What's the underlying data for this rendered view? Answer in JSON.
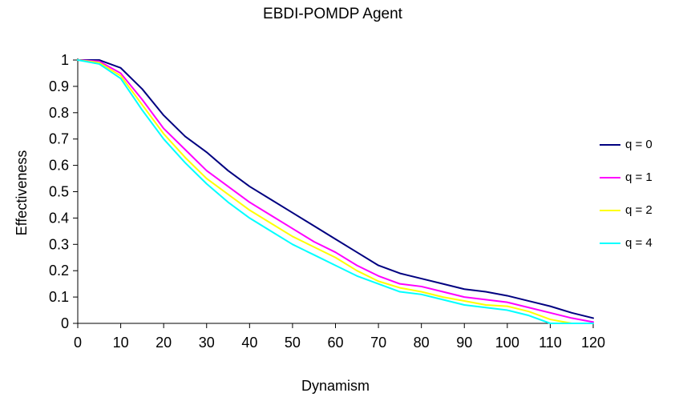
{
  "chart_data": {
    "type": "line",
    "title": "EBDI-POMDP Agent",
    "xlabel": "Dynamism",
    "ylabel": "Effectiveness",
    "xlim": [
      0,
      120
    ],
    "ylim": [
      0,
      1
    ],
    "grid": false,
    "legend_position": "right",
    "x_ticks": [
      0,
      10,
      20,
      30,
      40,
      50,
      60,
      70,
      80,
      90,
      100,
      110,
      120
    ],
    "y_ticks": [
      "0",
      "0.1",
      "0.2",
      "0.3",
      "0.4",
      "0.5",
      "0.6",
      "0.7",
      "0.8",
      "0.9",
      "1"
    ],
    "x": [
      0,
      5,
      10,
      15,
      20,
      25,
      30,
      35,
      40,
      45,
      50,
      55,
      60,
      65,
      70,
      75,
      80,
      85,
      90,
      95,
      100,
      105,
      110,
      115,
      120
    ],
    "series": [
      {
        "name": "q = 0",
        "color": "#000080",
        "values": [
          1.0,
          1.0,
          0.97,
          0.89,
          0.79,
          0.71,
          0.65,
          0.58,
          0.52,
          0.47,
          0.42,
          0.37,
          0.32,
          0.27,
          0.22,
          0.19,
          0.17,
          0.15,
          0.13,
          0.12,
          0.105,
          0.085,
          0.065,
          0.04,
          0.02
        ]
      },
      {
        "name": "q = 1",
        "color": "#FF00FF",
        "values": [
          1.0,
          0.995,
          0.95,
          0.85,
          0.74,
          0.66,
          0.58,
          0.52,
          0.46,
          0.41,
          0.36,
          0.31,
          0.27,
          0.22,
          0.18,
          0.15,
          0.14,
          0.12,
          0.1,
          0.09,
          0.08,
          0.06,
          0.04,
          0.02,
          0.005
        ]
      },
      {
        "name": "q = 2",
        "color": "#FFFF00",
        "values": [
          1.0,
          0.99,
          0.94,
          0.83,
          0.72,
          0.63,
          0.55,
          0.49,
          0.43,
          0.38,
          0.33,
          0.29,
          0.25,
          0.2,
          0.16,
          0.135,
          0.12,
          0.1,
          0.085,
          0.07,
          0.065,
          0.045,
          0.015,
          0.0,
          0.0
        ]
      },
      {
        "name": "q = 4",
        "color": "#00FFFF",
        "values": [
          1.0,
          0.985,
          0.93,
          0.81,
          0.7,
          0.61,
          0.53,
          0.46,
          0.4,
          0.35,
          0.3,
          0.26,
          0.22,
          0.18,
          0.15,
          0.12,
          0.11,
          0.09,
          0.07,
          0.06,
          0.05,
          0.03,
          0.0,
          0.0,
          0.0
        ]
      }
    ]
  }
}
